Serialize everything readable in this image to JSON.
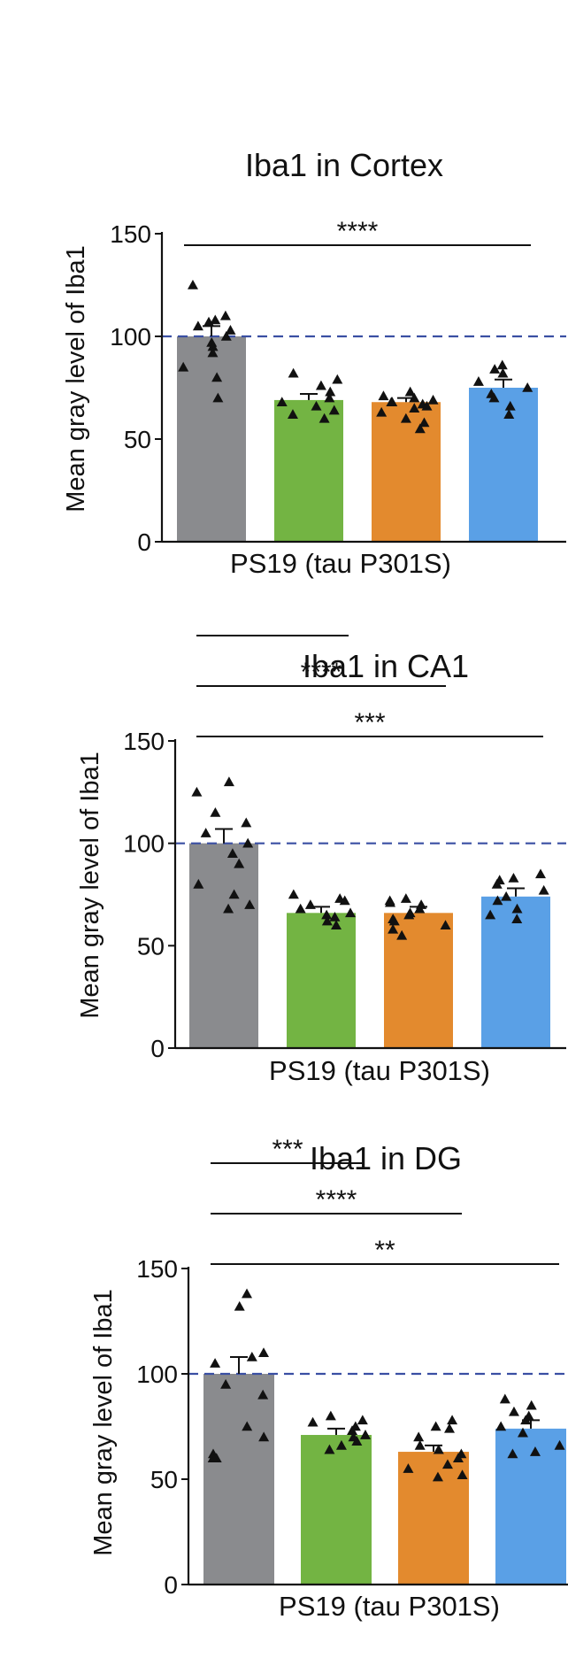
{
  "colors": {
    "groups": [
      "#8a8b8e",
      "#73b443",
      "#e38a2e",
      "#5aa0e6"
    ],
    "reference_line": "#3a4fa3",
    "axis": "#111111"
  },
  "chart_data": [
    {
      "type": "bar",
      "title": "Iba1 in Cortex",
      "ylabel": "Mean gray level of Iba1",
      "xlabel": "PS19 (tau P301S)",
      "yticks": [
        0,
        50,
        100,
        150
      ],
      "ylim": [
        0,
        150
      ],
      "reference_value": 100,
      "bars": [
        {
          "mean": 100,
          "sem": 5,
          "points": [
            125,
            110,
            108,
            107,
            105,
            103,
            100,
            97,
            95,
            92,
            85,
            80,
            70
          ]
        },
        {
          "mean": 69,
          "sem": 3,
          "points": [
            82,
            79,
            76,
            73,
            70,
            68,
            66,
            64,
            62,
            60
          ]
        },
        {
          "mean": 68,
          "sem": 2,
          "points": [
            73,
            71,
            70,
            69,
            68,
            68,
            67,
            66,
            65,
            63,
            60,
            58,
            55
          ]
        },
        {
          "mean": 75,
          "sem": 4,
          "points": [
            86,
            84,
            82,
            78,
            75,
            72,
            70,
            66,
            62
          ]
        }
      ],
      "significance": [
        {
          "from": 0,
          "to": 3,
          "label": "****"
        }
      ]
    },
    {
      "type": "bar",
      "title": "Iba1 in CA1",
      "ylabel": "Mean gray level of Iba1",
      "xlabel": "PS19 (tau P301S)",
      "yticks": [
        0,
        50,
        100,
        150
      ],
      "ylim": [
        0,
        150
      ],
      "reference_value": 100,
      "bars": [
        {
          "mean": 100,
          "sem": 7,
          "points": [
            130,
            125,
            115,
            110,
            105,
            100,
            95,
            90,
            80,
            75,
            70,
            68
          ]
        },
        {
          "mean": 66,
          "sem": 3,
          "points": [
            75,
            73,
            72,
            70,
            68,
            66,
            65,
            64,
            62,
            60
          ]
        },
        {
          "mean": 66,
          "sem": 3,
          "points": [
            73,
            72,
            71,
            70,
            68,
            66,
            65,
            63,
            62,
            60,
            58,
            55
          ]
        },
        {
          "mean": 74,
          "sem": 4,
          "points": [
            85,
            83,
            82,
            80,
            77,
            74,
            72,
            68,
            65,
            63
          ]
        }
      ],
      "significance": [
        {
          "from": 0,
          "to": 1,
          "label": ""
        },
        {
          "from": 0,
          "to": 2,
          "label": "****"
        },
        {
          "from": 0,
          "to": 3,
          "label": "***"
        }
      ]
    },
    {
      "type": "bar",
      "title": "Iba1 in DG",
      "ylabel": "Mean gray level of Iba1",
      "xlabel": "PS19 (tau P301S)",
      "yticks": [
        0,
        50,
        100,
        150
      ],
      "ylim": [
        0,
        150
      ],
      "reference_value": 100,
      "bars": [
        {
          "mean": 100,
          "sem": 8,
          "points": [
            138,
            132,
            110,
            108,
            105,
            95,
            90,
            75,
            70,
            62,
            60,
            60
          ]
        },
        {
          "mean": 71,
          "sem": 3,
          "points": [
            80,
            78,
            77,
            75,
            73,
            71,
            70,
            68,
            66,
            64
          ]
        },
        {
          "mean": 63,
          "sem": 3,
          "points": [
            78,
            75,
            74,
            70,
            66,
            64,
            62,
            60,
            57,
            55,
            52,
            51
          ]
        },
        {
          "mean": 74,
          "sem": 4,
          "points": [
            88,
            85,
            82,
            80,
            78,
            75,
            72,
            66,
            63,
            62
          ]
        }
      ],
      "significance": [
        {
          "from": 0,
          "to": 1,
          "label": "***"
        },
        {
          "from": 0,
          "to": 2,
          "label": "****"
        },
        {
          "from": 0,
          "to": 3,
          "label": "**"
        }
      ]
    }
  ]
}
